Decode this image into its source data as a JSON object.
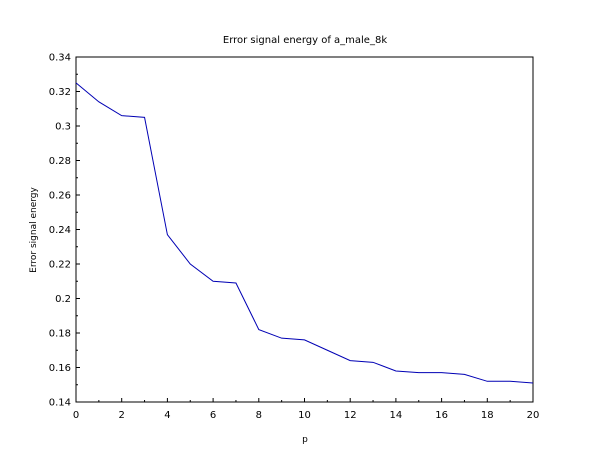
{
  "chart_data": {
    "type": "line",
    "title": "Error signal energy of a_male_8k",
    "xlabel": "p",
    "ylabel": "Error signal energy",
    "xlim": [
      0,
      20
    ],
    "ylim": [
      0.14,
      0.34
    ],
    "xticks": [
      "0",
      "2",
      "4",
      "6",
      "8",
      "10",
      "12",
      "14",
      "16",
      "18",
      "20"
    ],
    "yticks": [
      "0.14",
      "0.16",
      "0.18",
      "0.2",
      "0.22",
      "0.24",
      "0.26",
      "0.28",
      "0.3",
      "0.32",
      "0.34"
    ],
    "grid": false,
    "series": [
      {
        "color": "#0000b4",
        "x": [
          0,
          1,
          2,
          3,
          4,
          5,
          6,
          7,
          8,
          9,
          10,
          11,
          12,
          13,
          14,
          15,
          16,
          17,
          18,
          19,
          20
        ],
        "y": [
          0.325,
          0.314,
          0.306,
          0.305,
          0.237,
          0.22,
          0.21,
          0.209,
          0.182,
          0.177,
          0.176,
          0.17,
          0.164,
          0.163,
          0.158,
          0.157,
          0.157,
          0.156,
          0.152,
          0.152,
          0.151
        ]
      }
    ]
  }
}
